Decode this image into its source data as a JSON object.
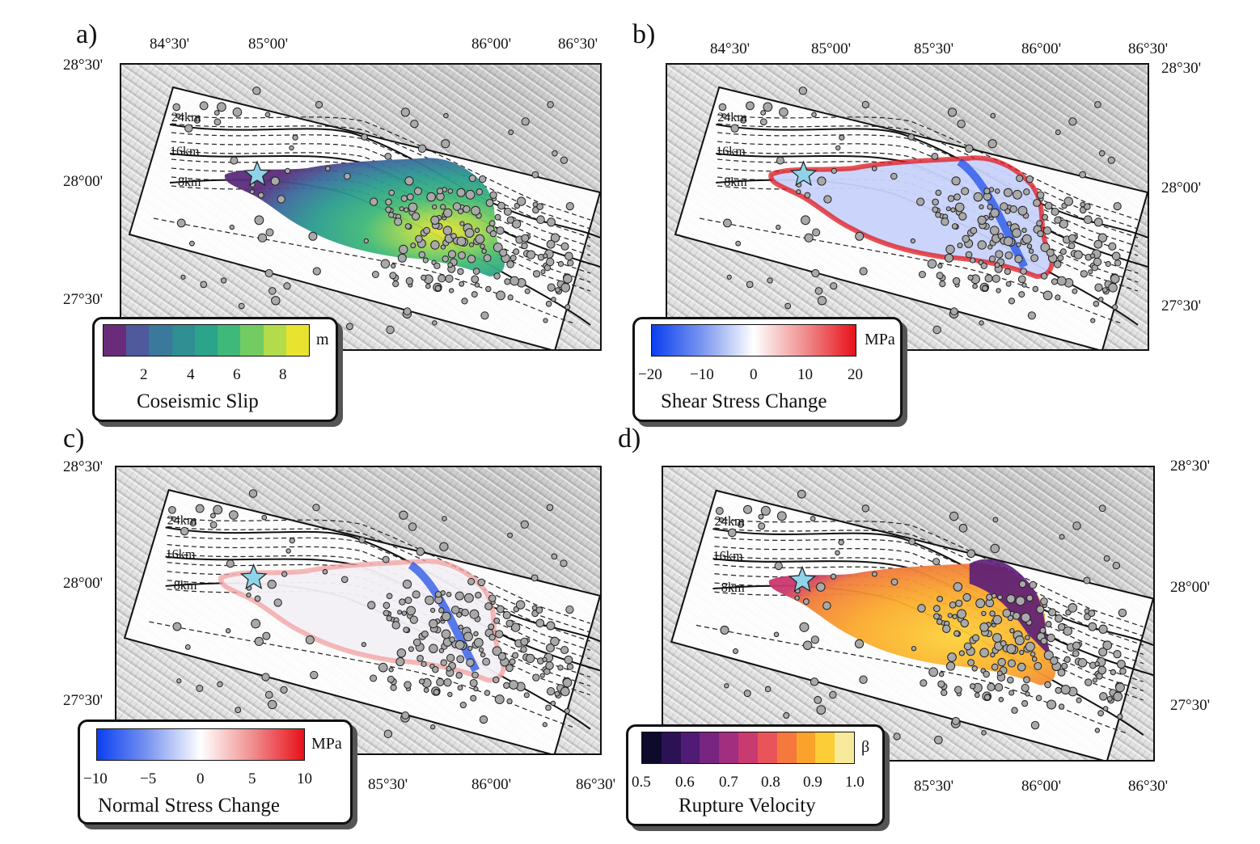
{
  "panels": {
    "a": {
      "label": "a)",
      "legend_title": "Coseismic Slip",
      "unit": "m",
      "ticks": [
        "2",
        "4",
        "6",
        "8"
      ],
      "colors": [
        "#6a2c7a",
        "#4e5a9c",
        "#3a789c",
        "#2f8f93",
        "#2aa48a",
        "#3fb979",
        "#72cc62",
        "#b3db4a",
        "#e8e32e"
      ]
    },
    "b": {
      "label": "b)",
      "legend_title": "Shear Stress Change",
      "unit": "MPa",
      "ticks": [
        "−20",
        "−10",
        "0",
        "10",
        "20"
      ]
    },
    "c": {
      "label": "c)",
      "legend_title": "Normal Stress Change",
      "unit": "MPa",
      "ticks": [
        "−10",
        "−5",
        "0",
        "5",
        "10"
      ]
    },
    "d": {
      "label": "d)",
      "legend_title": "Rupture Velocity",
      "unit": "β",
      "ticks": [
        "0.5",
        "0.6",
        "0.7",
        "0.8",
        "0.9",
        "1.0"
      ],
      "colors": [
        "#0d0a2c",
        "#2a1255",
        "#4f1b74",
        "#782481",
        "#a12e7f",
        "#c93b70",
        "#e8545a",
        "#f5783c",
        "#fba22a",
        "#fccd36",
        "#f7ea9a"
      ]
    }
  },
  "axes": {
    "lon_labels": [
      "84°30'",
      "85°00'",
      "85°30'",
      "86°00'",
      "86°30'"
    ],
    "lat_labels": [
      "28°30'",
      "28°00'",
      "27°30'"
    ]
  },
  "depth_contours": [
    "24km",
    "16km",
    "8km"
  ],
  "colors": {
    "hypocenter_star": "#8fd3ea",
    "aftershock": "#a9a9a9",
    "shear_neg": "#1446e6",
    "shear_pos": "#e0161c"
  }
}
